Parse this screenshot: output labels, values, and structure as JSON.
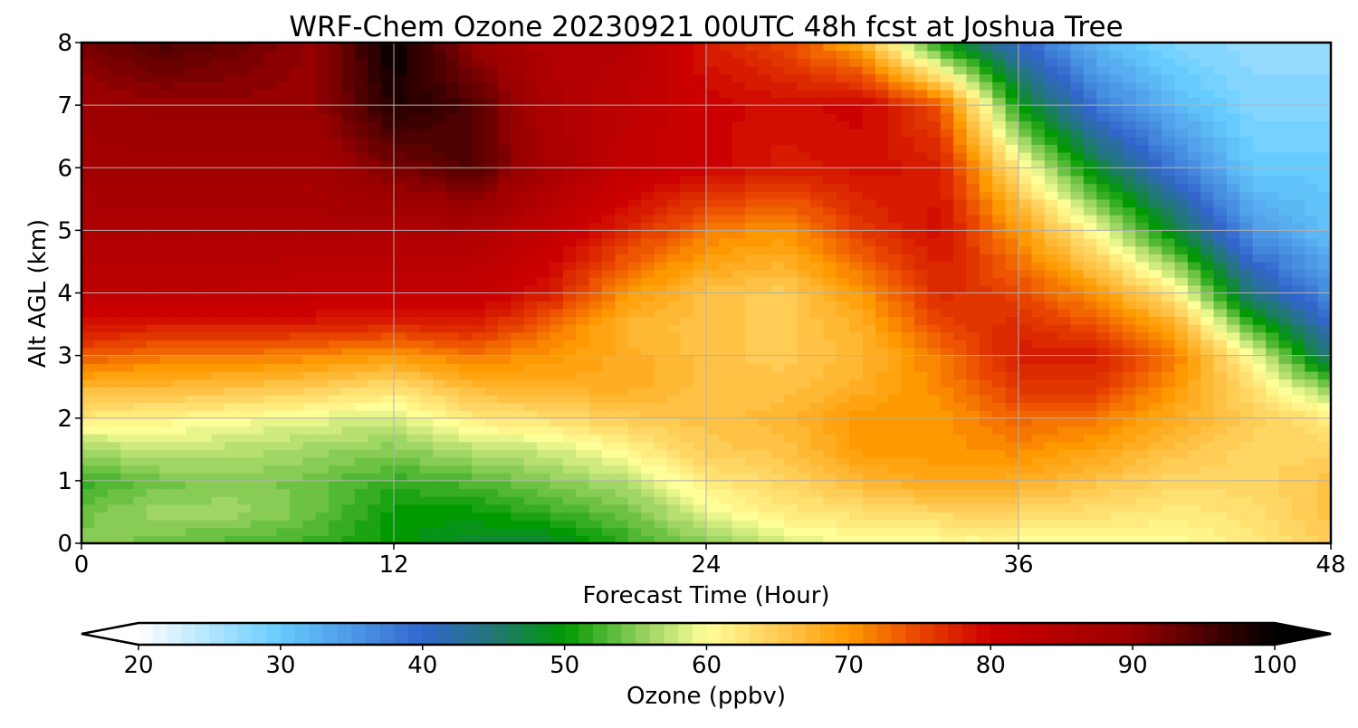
{
  "chart_data": {
    "type": "heatmap",
    "title": "WRF-Chem Ozone  20230921 00UTC 48h fcst at Joshua Tree",
    "xlabel": "Forecast Time (Hour)",
    "ylabel": "Alt AGL (km)",
    "xlim": [
      0,
      48
    ],
    "ylim": [
      0,
      8
    ],
    "xticks": [
      "0",
      "12",
      "24",
      "36",
      "48"
    ],
    "yticks": [
      "0",
      "1",
      "2",
      "3",
      "4",
      "5",
      "6",
      "7",
      "8"
    ],
    "grid": true,
    "x": [
      0,
      3,
      6,
      9,
      12,
      15,
      18,
      21,
      24,
      27,
      30,
      33,
      36,
      39,
      42,
      45,
      48
    ],
    "y": [
      0,
      0.5,
      1,
      1.5,
      2,
      2.5,
      3,
      3.5,
      4,
      5,
      6,
      7,
      8
    ],
    "values_by_time": [
      [
        55,
        54,
        52,
        56,
        62,
        67,
        74,
        79,
        83,
        86,
        88,
        89,
        92
      ],
      [
        54,
        56,
        54,
        58,
        61,
        67,
        72,
        78,
        83,
        86,
        88,
        90,
        95
      ],
      [
        53,
        56,
        55,
        57,
        60,
        66,
        72,
        78,
        83,
        86,
        88,
        90,
        93
      ],
      [
        52,
        54,
        54,
        56,
        59,
        65,
        71,
        78,
        82,
        86,
        88,
        90,
        90
      ],
      [
        50,
        50,
        52,
        55,
        58,
        63,
        70,
        77,
        82,
        86,
        92,
        98,
        100
      ],
      [
        48,
        50,
        53,
        57,
        62,
        67,
        72,
        78,
        82,
        86,
        95,
        95,
        90
      ],
      [
        48,
        52,
        55,
        58,
        63,
        68,
        70,
        73,
        78,
        82,
        87,
        86,
        85
      ],
      [
        52,
        54,
        57,
        61,
        65,
        68,
        68,
        67,
        70,
        77,
        82,
        83,
        85
      ],
      [
        55,
        59,
        62,
        65,
        66,
        66,
        66,
        66,
        66,
        72,
        80,
        80,
        78
      ],
      [
        58,
        62,
        64,
        66,
        67,
        66,
        65,
        65,
        65,
        70,
        78,
        79,
        75
      ],
      [
        60,
        63,
        67,
        70,
        70,
        68,
        67,
        68,
        70,
        76,
        79,
        80,
        68
      ],
      [
        60,
        64,
        69,
        70,
        70,
        71,
        72,
        75,
        77,
        79,
        78,
        74,
        50
      ],
      [
        60,
        64,
        68,
        71,
        73,
        76,
        78,
        77,
        75,
        70,
        62,
        50,
        40
      ],
      [
        60,
        63,
        66,
        69,
        72,
        76,
        78,
        74,
        70,
        60,
        48,
        38,
        32
      ],
      [
        60,
        62,
        64,
        66,
        68,
        70,
        72,
        68,
        62,
        48,
        38,
        32,
        28
      ],
      [
        62,
        63,
        64,
        64,
        65,
        63,
        60,
        52,
        44,
        35,
        30,
        28,
        27
      ],
      [
        65,
        66,
        66,
        64,
        62,
        55,
        44,
        40,
        36,
        31,
        30,
        28,
        27
      ]
    ],
    "colorbar": {
      "label": "Ozone  (ppbv)",
      "range": [
        20,
        100
      ],
      "step": 1,
      "extend": "both",
      "ticks": [
        "20",
        "30",
        "40",
        "50",
        "60",
        "70",
        "80",
        "90",
        "100"
      ],
      "colormap": [
        [
          20,
          "#ffffff"
        ],
        [
          30,
          "#66ccff"
        ],
        [
          40,
          "#3366cc"
        ],
        [
          45,
          "#227777"
        ],
        [
          50,
          "#009900"
        ],
        [
          55,
          "#88cc55"
        ],
        [
          60,
          "#ffff99"
        ],
        [
          65,
          "#ffcc55"
        ],
        [
          70,
          "#ff9900"
        ],
        [
          75,
          "#e84400"
        ],
        [
          80,
          "#cc0000"
        ],
        [
          90,
          "#990000"
        ],
        [
          100,
          "#000000"
        ]
      ]
    }
  }
}
